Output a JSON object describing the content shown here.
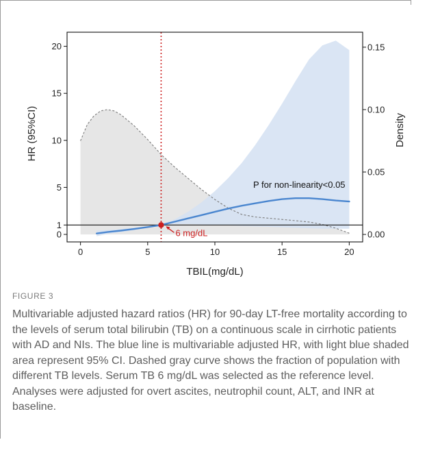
{
  "chart_data": {
    "type": "line",
    "xlabel": "TBIL(mg/dL)",
    "ylabel": "HR (95%CI)",
    "y2label": "Density",
    "xlim": [
      -1,
      21
    ],
    "ylim": [
      -0.8,
      21.5
    ],
    "y2lim": [
      -0.006,
      0.162
    ],
    "x_ticks": [
      0,
      5,
      10,
      15,
      20
    ],
    "y_ticks": [
      0,
      1,
      5,
      10,
      15,
      20
    ],
    "y2_ticks": [
      0.0,
      0.05,
      0.1,
      0.15
    ],
    "y_tick_labels": [
      "0",
      "1",
      "5",
      "10",
      "15",
      "20"
    ],
    "y2_tick_labels": [
      "0.00",
      "0.05",
      "0.10",
      "0.15"
    ],
    "x_tick_labels": [
      "0",
      "5",
      "10",
      "15",
      "20"
    ],
    "reference_line_y": 1,
    "reference_x": 6,
    "reference_point": {
      "x": 6,
      "y": 1
    },
    "annotations": {
      "reference_label": "6 mg/dL",
      "p_text": "P for non-linearity<0.05"
    },
    "series": [
      {
        "kind": "hr_line",
        "x": [
          1.2,
          2,
          3,
          4,
          5,
          6,
          7,
          8,
          9,
          10,
          11,
          12,
          13,
          14,
          15,
          16,
          17,
          18,
          19,
          20
        ],
        "y": [
          0.1,
          0.25,
          0.4,
          0.58,
          0.78,
          1.0,
          1.35,
          1.7,
          2.05,
          2.4,
          2.75,
          3.05,
          3.3,
          3.55,
          3.75,
          3.85,
          3.85,
          3.75,
          3.6,
          3.5
        ]
      },
      {
        "kind": "ci_band",
        "x": [
          1.2,
          2,
          3,
          4,
          5,
          6,
          7,
          8,
          9,
          10,
          11,
          12,
          13,
          14,
          15,
          16,
          17,
          18,
          19,
          20
        ],
        "upper": [
          0.4,
          0.45,
          0.55,
          0.7,
          0.85,
          1.0,
          1.6,
          2.4,
          3.4,
          4.6,
          6.0,
          7.6,
          9.5,
          11.6,
          13.9,
          16.3,
          18.6,
          20.1,
          20.6,
          19.6
        ],
        "lower": [
          -0.2,
          0.05,
          0.25,
          0.45,
          0.7,
          1.0,
          1.1,
          1.1,
          1.05,
          1.0,
          0.95,
          0.9,
          0.85,
          0.8,
          0.75,
          0.7,
          0.65,
          0.6,
          0.6,
          0.6
        ]
      },
      {
        "kind": "density",
        "x": [
          0,
          0.5,
          1,
          1.5,
          2,
          2.5,
          3,
          4,
          5,
          6,
          7,
          8,
          9,
          10,
          11,
          12,
          13,
          14,
          15,
          16,
          17,
          18,
          19,
          20
        ],
        "y": [
          0.075,
          0.088,
          0.095,
          0.099,
          0.1,
          0.099,
          0.096,
          0.087,
          0.076,
          0.064,
          0.054,
          0.045,
          0.036,
          0.028,
          0.021,
          0.016,
          0.014,
          0.013,
          0.012,
          0.011,
          0.01,
          0.008,
          0.005,
          0.001
        ]
      }
    ],
    "colors": {
      "hr_line": "#4a86cf",
      "ci_band": "#d3e1f2",
      "density_fill": "#e6e6e6",
      "density_line": "#7b7b7b",
      "reference": "#cc1f1f"
    }
  },
  "caption": {
    "label": "FIGURE 3",
    "text": "Multivariable adjusted hazard ratios (HR) for 90-day LT-free mortality according to the levels of serum total bilirubin (TB) on a continuous scale in cirrhotic patients with AD and NIs. The blue line is multivariable adjusted HR, with light blue shaded area represent 95% CI. Dashed gray curve shows the fraction of population with different TB levels. Serum TB 6 mg/dL was selected as the reference level. Analyses were adjusted for overt ascites, neutrophil count, ALT, and INR at baseline."
  }
}
